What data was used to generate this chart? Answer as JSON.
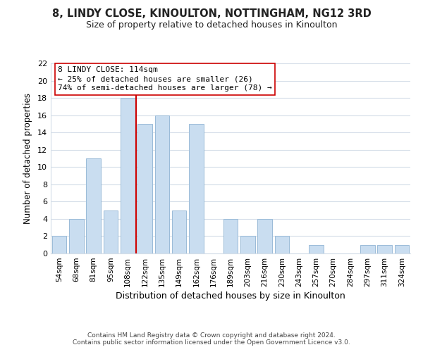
{
  "title": "8, LINDY CLOSE, KINOULTON, NOTTINGHAM, NG12 3RD",
  "subtitle": "Size of property relative to detached houses in Kinoulton",
  "xlabel": "Distribution of detached houses by size in Kinoulton",
  "ylabel": "Number of detached properties",
  "bar_labels": [
    "54sqm",
    "68sqm",
    "81sqm",
    "95sqm",
    "108sqm",
    "122sqm",
    "135sqm",
    "149sqm",
    "162sqm",
    "176sqm",
    "189sqm",
    "203sqm",
    "216sqm",
    "230sqm",
    "243sqm",
    "257sqm",
    "270sqm",
    "284sqm",
    "297sqm",
    "311sqm",
    "324sqm"
  ],
  "bar_values": [
    2,
    4,
    11,
    5,
    18,
    15,
    16,
    5,
    15,
    0,
    4,
    2,
    4,
    2,
    0,
    1,
    0,
    0,
    1,
    1,
    1
  ],
  "bar_color": "#c9ddf0",
  "bar_edge_color": "#9abbd8",
  "ylim": [
    0,
    22
  ],
  "yticks": [
    0,
    2,
    4,
    6,
    8,
    10,
    12,
    14,
    16,
    18,
    20,
    22
  ],
  "vline_x": 4.5,
  "vline_color": "#cc0000",
  "annotation_line1": "8 LINDY CLOSE: 114sqm",
  "annotation_line2": "← 25% of detached houses are smaller (26)",
  "annotation_line3": "74% of semi-detached houses are larger (78) →",
  "annotation_box_color": "#ffffff",
  "annotation_box_edge": "#cc0000",
  "footnote1": "Contains HM Land Registry data © Crown copyright and database right 2024.",
  "footnote2": "Contains public sector information licensed under the Open Government Licence v3.0.",
  "background_color": "#ffffff",
  "grid_color": "#d4dde8",
  "title_fontsize": 10.5,
  "subtitle_fontsize": 9,
  "xlabel_fontsize": 9,
  "ylabel_fontsize": 8.5,
  "tick_fontsize": 8,
  "xtick_fontsize": 7.5,
  "annotation_fontsize": 8,
  "footnote_fontsize": 6.5
}
